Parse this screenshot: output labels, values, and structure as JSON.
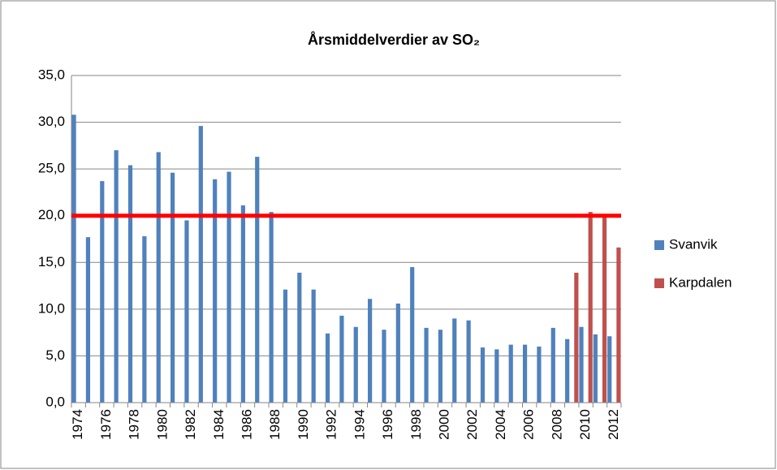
{
  "chart_data": {
    "type": "bar",
    "title": "Årsmiddelverdier av SO₂",
    "categories": [
      "1974",
      null,
      "1976",
      null,
      "1978",
      null,
      "1980",
      null,
      "1982",
      null,
      "1984",
      null,
      "1986",
      null,
      "1988",
      null,
      "1990",
      null,
      "1992",
      null,
      "1994",
      null,
      "1996",
      null,
      "1998",
      null,
      "2000",
      null,
      "2002",
      null,
      "2004",
      null,
      "2006",
      null,
      "2008",
      null,
      "2010",
      null,
      "2012"
    ],
    "series": [
      {
        "name": "Svanvik",
        "color": "#4f81bd",
        "values": [
          30.8,
          17.7,
          23.7,
          27.0,
          25.4,
          17.8,
          26.8,
          24.6,
          19.5,
          29.6,
          23.9,
          24.7,
          21.1,
          26.3,
          20.4,
          12.1,
          13.9,
          12.1,
          7.4,
          9.3,
          8.1,
          11.1,
          7.8,
          10.6,
          14.5,
          8.0,
          7.8,
          9.0,
          8.8,
          5.9,
          5.7,
          6.2,
          6.2,
          6.0,
          8.0,
          6.8,
          8.1,
          7.3,
          7.1
        ]
      },
      {
        "name": "Karpdalen",
        "color": "#c0504d",
        "values": [
          null,
          null,
          null,
          null,
          null,
          null,
          null,
          null,
          null,
          null,
          null,
          null,
          null,
          null,
          null,
          null,
          null,
          null,
          null,
          null,
          null,
          null,
          null,
          null,
          null,
          null,
          null,
          null,
          null,
          null,
          null,
          null,
          null,
          null,
          null,
          13.9,
          20.4,
          20.0,
          16.6
        ]
      }
    ],
    "reference_line": {
      "value": 20,
      "color": "#ff0000"
    },
    "ylim": [
      0,
      35
    ],
    "yticks": [
      {
        "value": 0,
        "label": "0,0"
      },
      {
        "value": 5,
        "label": "5,0"
      },
      {
        "value": 10,
        "label": "10,0"
      },
      {
        "value": 15,
        "label": "15,0"
      },
      {
        "value": 20,
        "label": "20,0"
      },
      {
        "value": 25,
        "label": "25,0"
      },
      {
        "value": 30,
        "label": "30,0"
      },
      {
        "value": 35,
        "label": "35,0"
      }
    ],
    "grid": true,
    "legend": "right"
  }
}
